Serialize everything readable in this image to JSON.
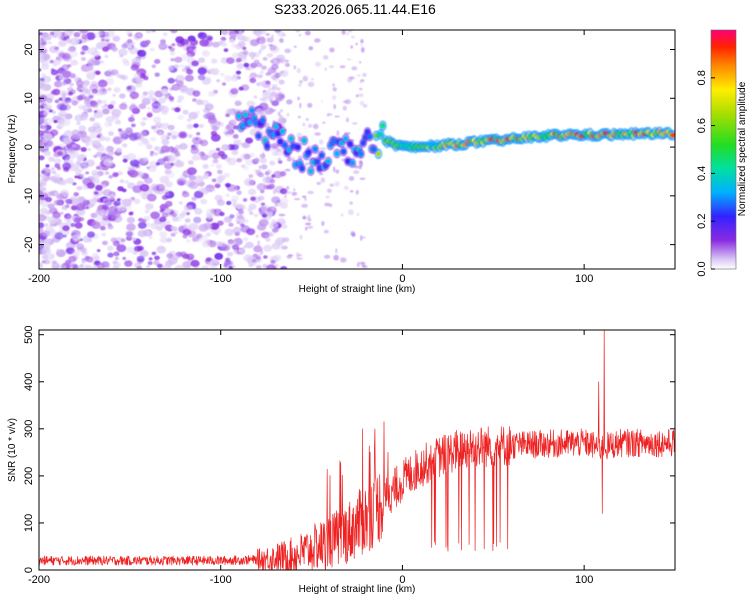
{
  "title": "S233.2026.065.11.44.E16",
  "chart_data": [
    {
      "type": "heatmap",
      "name": "spectrogram",
      "xlabel": "Height of straight line (km)",
      "ylabel": "Frequency (Hz)",
      "xlim": [
        -200,
        150
      ],
      "ylim": [
        -25,
        24
      ],
      "xticks": [
        -200,
        -100,
        0,
        100
      ],
      "yticks": [
        -20,
        -10,
        0,
        10,
        20
      ],
      "ridge": {
        "x": [
          -90,
          -80,
          -70,
          -60,
          -50,
          -40,
          -30,
          -20,
          -15,
          -10,
          0,
          10,
          20,
          30,
          40,
          50,
          60,
          70,
          80,
          90,
          100,
          110,
          120,
          130,
          140,
          150
        ],
        "freq": [
          6,
          4,
          2,
          -1,
          -2,
          -1,
          -0.5,
          0,
          1,
          1.5,
          0,
          0,
          0.3,
          0.6,
          1,
          1.3,
          1.6,
          2,
          2.3,
          2.5,
          2.5,
          2.5,
          2.6,
          2.7,
          2.8,
          2.8
        ]
      },
      "colorbar": {
        "label": "Normalized spectral amplitude",
        "range": [
          0,
          1
        ],
        "ticks": [
          "0.0",
          "0.2",
          "0.4",
          "0.6",
          "0.8"
        ],
        "tick_values": [
          0,
          0.2,
          0.4,
          0.6,
          0.8
        ]
      }
    },
    {
      "type": "line",
      "name": "snr",
      "xlabel": "Height of straight line (km)",
      "ylabel": "SNR (10 * v/v)",
      "xlim": [
        -200,
        150
      ],
      "ylim": [
        0,
        510
      ],
      "xticks": [
        -200,
        -100,
        0,
        100
      ],
      "yticks": [
        0,
        100,
        200,
        300,
        400,
        500
      ],
      "color": "#ee2222",
      "baseline": {
        "x": [
          -200,
          -100,
          -80,
          -60,
          -50,
          -40,
          -30,
          -20,
          -10,
          0,
          10,
          20,
          30,
          40,
          60,
          80,
          100,
          110,
          120,
          150
        ],
        "y": [
          20,
          20,
          22,
          30,
          45,
          60,
          80,
          110,
          150,
          190,
          220,
          240,
          255,
          262,
          265,
          268,
          270,
          260,
          270,
          270
        ]
      },
      "spikes": [
        {
          "x": -22,
          "y": 300
        },
        {
          "x": -8,
          "y": 250
        },
        {
          "x": 108,
          "y": 400
        },
        {
          "x": 111,
          "y": 510
        },
        {
          "x": 110,
          "y": 120
        },
        {
          "x": 25,
          "y": 40
        },
        {
          "x": 45,
          "y": 45
        },
        {
          "x": 58,
          "y": 45
        }
      ]
    }
  ]
}
